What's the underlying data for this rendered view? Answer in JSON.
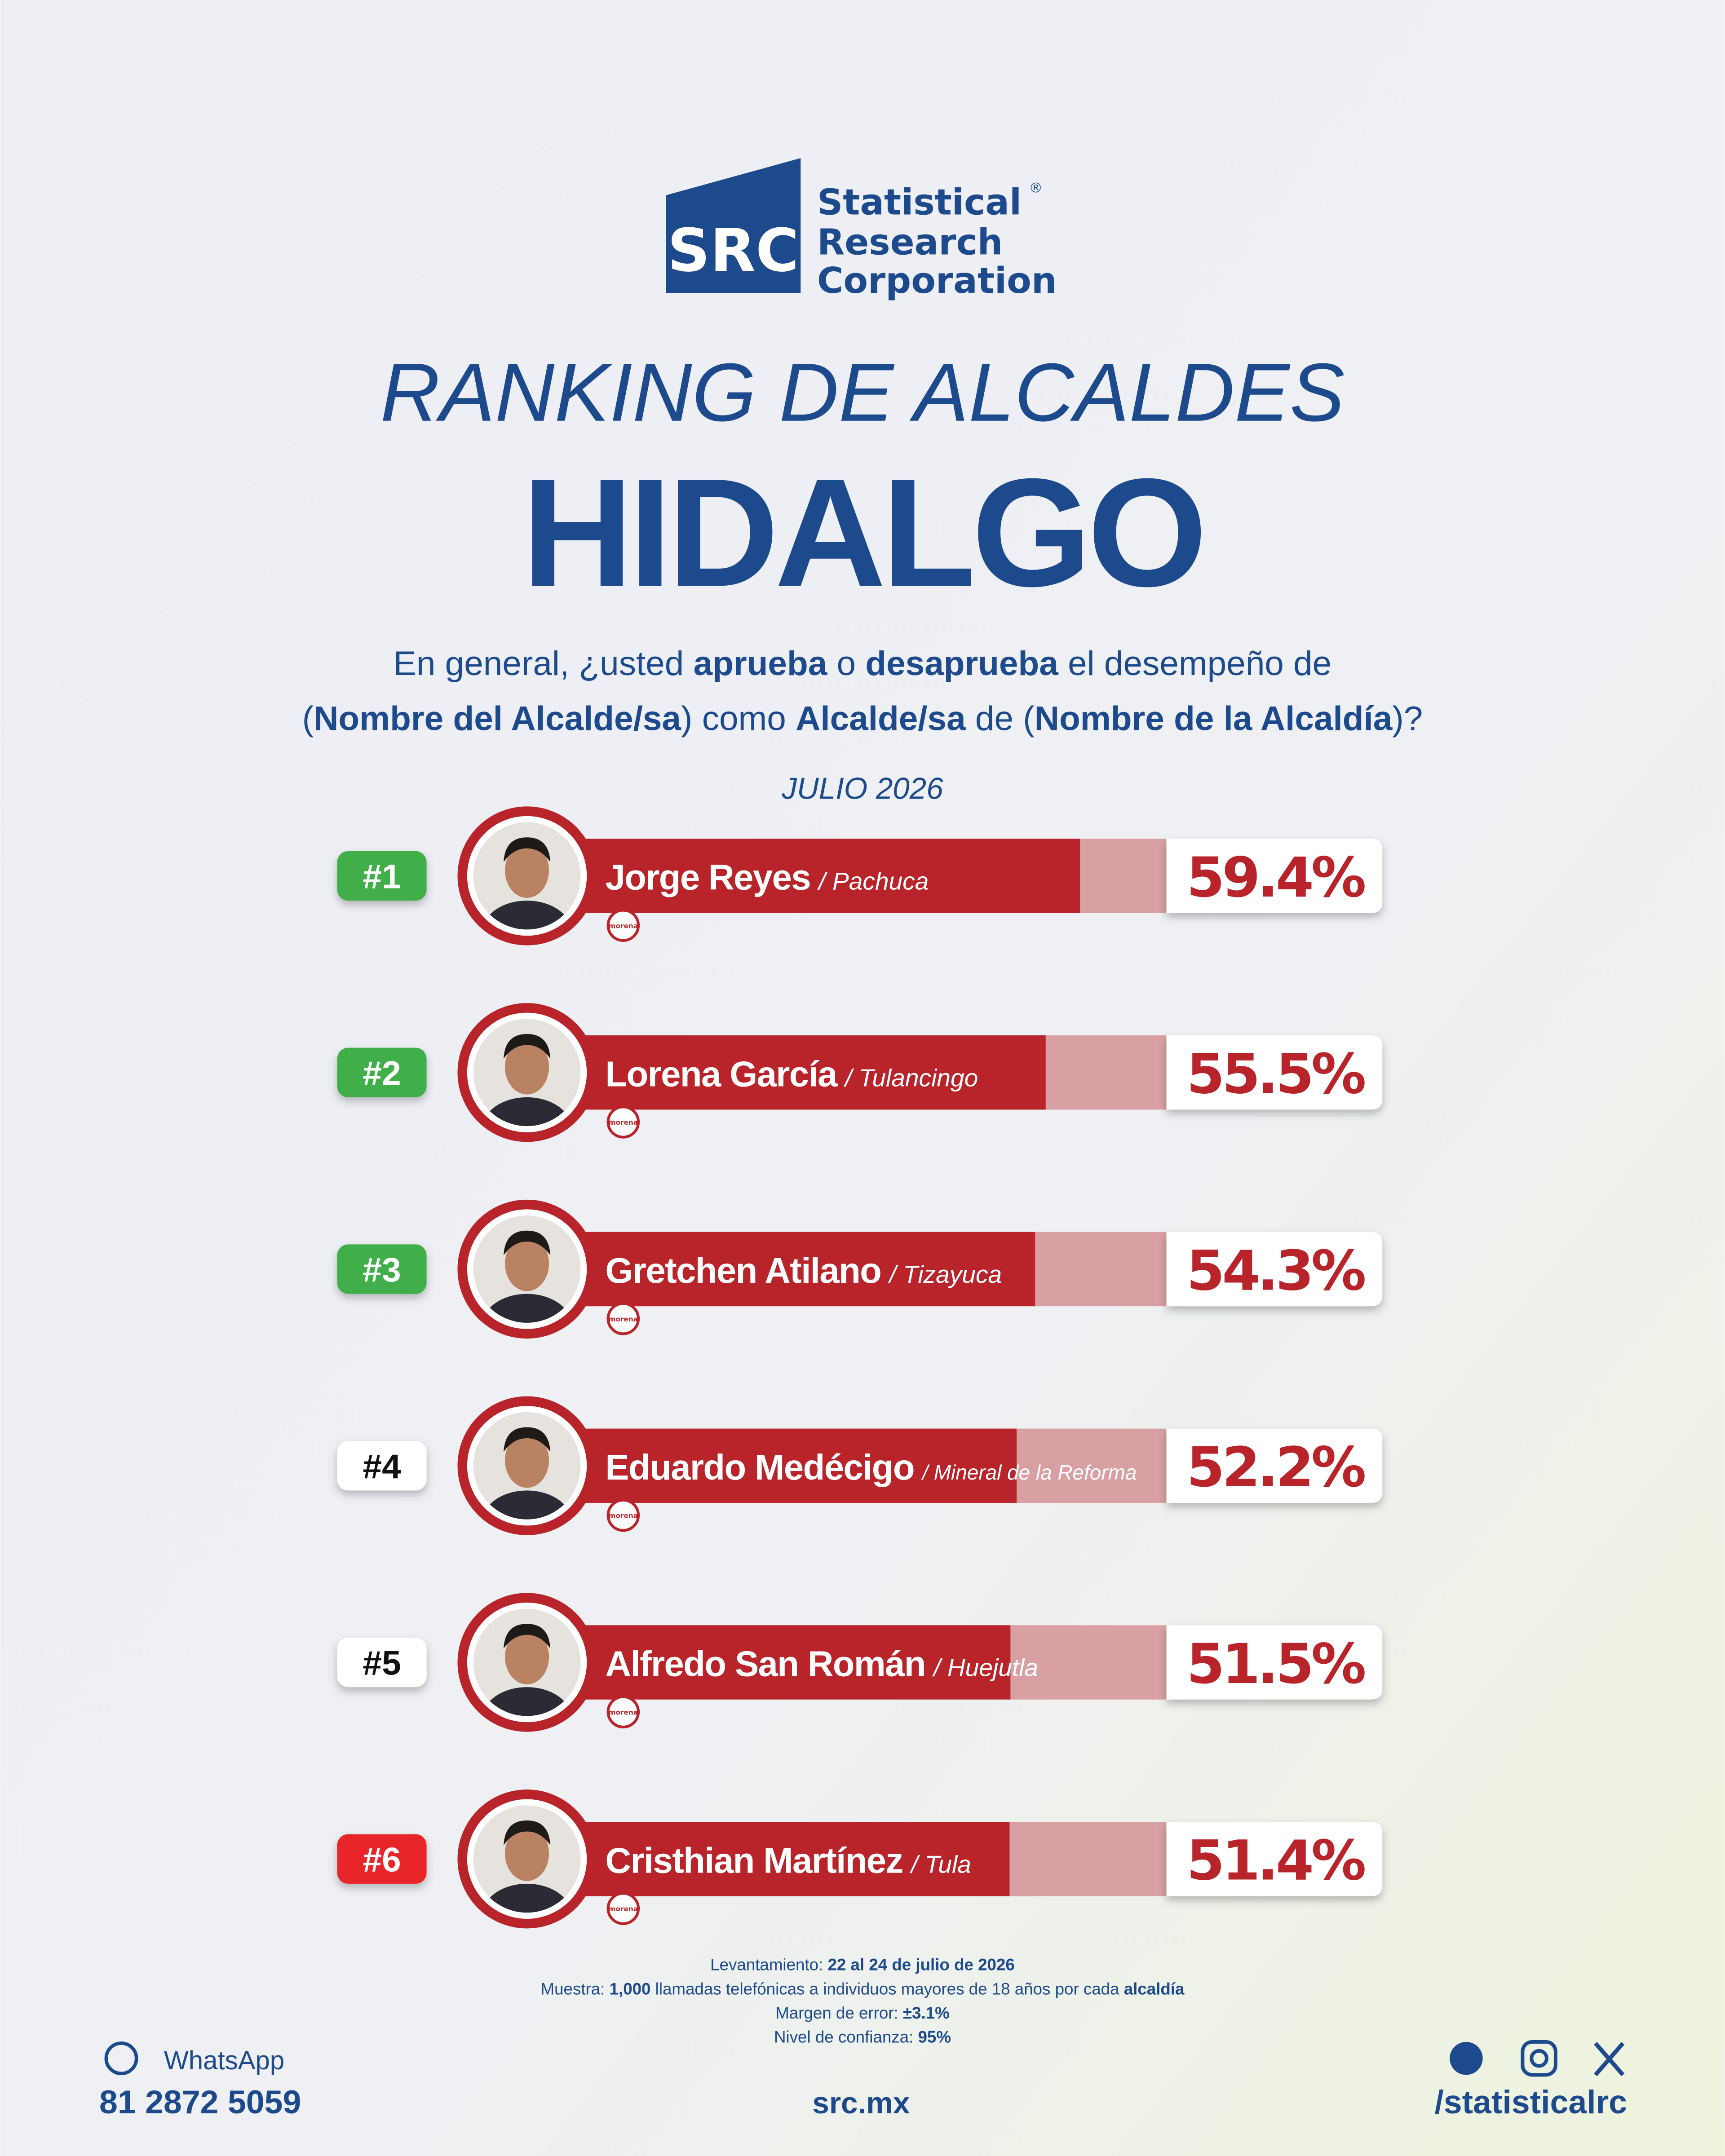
{
  "logo": {
    "mark": "SRC",
    "lines": [
      "Statistical",
      "Research",
      "Corporation"
    ],
    "registered": "®"
  },
  "chart_data": {
    "type": "bar",
    "subtitle": "RANKING DE ALCALDES",
    "title": "HIDALGO",
    "question": [
      [
        {
          "text": "En general, ¿usted ",
          "bold": false
        },
        {
          "text": "aprueba",
          "bold": true
        },
        {
          "text": " o ",
          "bold": false
        },
        {
          "text": "desaprueba",
          "bold": true
        },
        {
          "text": " el desempeño de",
          "bold": false
        }
      ],
      [
        {
          "text": "(",
          "bold": false
        },
        {
          "text": "Nombre del Alcalde/sa",
          "bold": true
        },
        {
          "text": ") como ",
          "bold": false
        },
        {
          "text": "Alcalde/sa",
          "bold": true
        },
        {
          "text": " de (",
          "bold": false
        },
        {
          "text": "Nombre de la Alcaldía",
          "bold": true
        },
        {
          "text": ")?",
          "bold": false
        }
      ]
    ],
    "date": "JULIO 2026",
    "ranks": [
      "#1",
      "#2",
      "#3",
      "#4",
      "#5",
      "#6"
    ],
    "rank_colors": [
      "#3fae49",
      "#3fae49",
      "#3fae49",
      "#ffffff",
      "#ffffff",
      "#e8262a"
    ],
    "categories": [
      "Jorge Reyes",
      "Lorena García",
      "Gretchen Atilano",
      "Eduardo Medécigo",
      "Alfredo San Román",
      "Cristhian Martínez"
    ],
    "places": [
      "/ Pachuca",
      "/ Tulancingo",
      "/ Tizayuca",
      "/ Mineral de la Reforma",
      "/ Huejutla",
      "/ Tula"
    ],
    "party": [
      "morena",
      "morena",
      "morena",
      "morena",
      "morena",
      "morena"
    ],
    "values": [
      59.4,
      55.5,
      54.3,
      52.2,
      51.5,
      51.4
    ],
    "value_labels": [
      "59.4%",
      "55.5%",
      "54.3%",
      "52.2%",
      "51.5%",
      "51.4%"
    ],
    "color": "#b8242a"
  },
  "footer": {
    "notes": [
      [
        {
          "text": "Levantamiento: ",
          "bold": false
        },
        {
          "text": "22 al 24 de julio de 2026",
          "bold": true
        }
      ],
      [
        {
          "text": "Muestra: ",
          "bold": false
        },
        {
          "text": "1,000",
          "bold": true
        },
        {
          "text": " llamadas telefónicas a individuos mayores de 18 años por cada ",
          "bold": false
        },
        {
          "text": "alcaldía",
          "bold": true
        }
      ],
      [
        {
          "text": "Margen de error: ",
          "bold": false
        },
        {
          "text": "±3.1%",
          "bold": true
        }
      ],
      [
        {
          "text": "Nivel de confianza: ",
          "bold": false
        },
        {
          "text": "95%",
          "bold": true
        }
      ]
    ],
    "whatsapp": "WhatsApp",
    "phone": "81 2872 5059",
    "site": "src.mx",
    "handle": "/statisticalrc"
  }
}
